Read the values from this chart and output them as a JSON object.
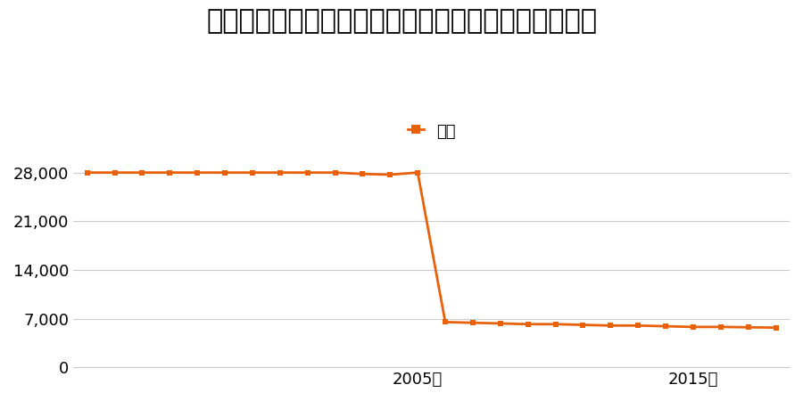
{
  "title": "大分県宇佐市大字法鏡寺字屋敷１５３番１の地価推移",
  "legend_label": "価格",
  "line_color": "#E8600A",
  "marker_color": "#E8600A",
  "background_color": "#ffffff",
  "years": [
    1993,
    1994,
    1995,
    1996,
    1997,
    1998,
    1999,
    2000,
    2001,
    2002,
    2003,
    2004,
    2005,
    2006,
    2007,
    2008,
    2009,
    2010,
    2011,
    2012,
    2013,
    2014,
    2015,
    2016,
    2017,
    2018
  ],
  "values": [
    28000,
    28000,
    28000,
    28000,
    28000,
    28000,
    28000,
    28000,
    28000,
    28000,
    27800,
    27700,
    28000,
    6500,
    6400,
    6300,
    6200,
    6200,
    6100,
    6000,
    6000,
    5900,
    5800,
    5800,
    5750,
    5700
  ],
  "ylim": [
    0,
    31500
  ],
  "yticks": [
    0,
    7000,
    14000,
    21000,
    28000
  ],
  "xtick_years": [
    2005,
    2015
  ],
  "xtick_labels": [
    "2005年",
    "2015年"
  ],
  "title_fontsize": 22,
  "legend_fontsize": 13,
  "tick_fontsize": 13,
  "grid_color": "#cccccc",
  "marker_size": 5,
  "line_width": 2.0
}
